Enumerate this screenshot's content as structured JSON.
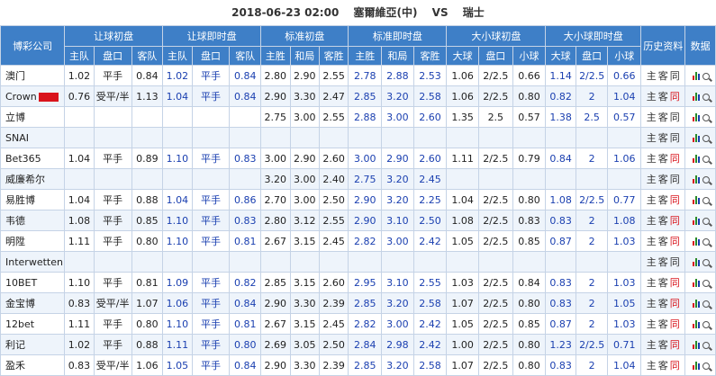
{
  "match": {
    "datetime": "2018-06-23 02:00",
    "home": "塞爾維亞(中)",
    "vs": "VS",
    "away": "瑞士"
  },
  "headers": {
    "company": "博彩公司",
    "groups": [
      "让球初盘",
      "让球即时盘",
      "标准初盘",
      "标准即时盘",
      "大小球初盘",
      "大小球即时盘",
      "历史资料",
      "数据"
    ],
    "sub": [
      "主队",
      "盘口",
      "客队",
      "主队",
      "盘口",
      "客队",
      "主胜",
      "和局",
      "客胜",
      "主胜",
      "和局",
      "客胜",
      "大球",
      "盘口",
      "小球",
      "大球",
      "盘口",
      "小球"
    ]
  },
  "links": {
    "home": "主",
    "away": "客",
    "same": "同"
  },
  "colors": {
    "header_bg": "#3e7fc7",
    "live_text": "#1a3fb0",
    "same_red": "#d9141c"
  },
  "rows": [
    {
      "company": "澳门",
      "vals": [
        "1.02",
        "平手",
        "0.84",
        "1.02",
        "平手",
        "0.84",
        "2.80",
        "2.90",
        "2.55",
        "2.78",
        "2.88",
        "2.53",
        "1.06",
        "2/2.5",
        "0.66",
        "1.14",
        "2/2.5",
        "0.66"
      ],
      "same_red": false
    },
    {
      "company": "Crown",
      "badge": true,
      "vals": [
        "0.76",
        "受平/半",
        "1.13",
        "1.04",
        "平手",
        "0.84",
        "2.90",
        "3.30",
        "2.47",
        "2.85",
        "3.20",
        "2.58",
        "1.06",
        "2/2.5",
        "0.80",
        "0.82",
        "2",
        "1.04"
      ],
      "same_red": true
    },
    {
      "company": "立博",
      "vals": [
        "",
        "",
        "",
        "",
        "",
        "",
        "2.75",
        "3.00",
        "2.55",
        "2.88",
        "3.00",
        "2.60",
        "1.35",
        "2.5",
        "0.57",
        "1.38",
        "2.5",
        "0.57"
      ],
      "same_red": false
    },
    {
      "company": "SNAI",
      "vals": [
        "",
        "",
        "",
        "",
        "",
        "",
        "",
        "",
        "",
        "",
        "",
        "",
        "",
        "",
        "",
        "",
        "",
        ""
      ],
      "same_red": false
    },
    {
      "company": "Bet365",
      "vals": [
        "1.04",
        "平手",
        "0.89",
        "1.10",
        "平手",
        "0.83",
        "3.00",
        "2.90",
        "2.60",
        "3.00",
        "2.90",
        "2.60",
        "1.11",
        "2/2.5",
        "0.79",
        "0.84",
        "2",
        "1.06"
      ],
      "same_red": true
    },
    {
      "company": "威廉希尔",
      "vals": [
        "",
        "",
        "",
        "",
        "",
        "",
        "3.20",
        "3.00",
        "2.40",
        "2.75",
        "3.20",
        "2.45",
        "",
        "",
        "",
        "",
        "",
        ""
      ],
      "same_red": false
    },
    {
      "company": "易胜博",
      "vals": [
        "1.04",
        "平手",
        "0.88",
        "1.04",
        "平手",
        "0.86",
        "2.70",
        "3.00",
        "2.50",
        "2.90",
        "3.20",
        "2.25",
        "1.04",
        "2/2.5",
        "0.80",
        "1.08",
        "2/2.5",
        "0.77"
      ],
      "same_red": true
    },
    {
      "company": "韦德",
      "vals": [
        "1.08",
        "平手",
        "0.85",
        "1.10",
        "平手",
        "0.83",
        "2.80",
        "3.12",
        "2.55",
        "2.90",
        "3.10",
        "2.50",
        "1.08",
        "2/2.5",
        "0.83",
        "0.83",
        "2",
        "1.08"
      ],
      "same_red": true
    },
    {
      "company": "明陞",
      "vals": [
        "1.11",
        "平手",
        "0.80",
        "1.10",
        "平手",
        "0.81",
        "2.67",
        "3.15",
        "2.45",
        "2.82",
        "3.00",
        "2.42",
        "1.05",
        "2/2.5",
        "0.85",
        "0.87",
        "2",
        "1.03"
      ],
      "same_red": true
    },
    {
      "company": "Interwetten",
      "vals": [
        "",
        "",
        "",
        "",
        "",
        "",
        "",
        "",
        "",
        "",
        "",
        "",
        "",
        "",
        "",
        "",
        "",
        ""
      ],
      "same_red": false
    },
    {
      "company": "10BET",
      "vals": [
        "1.10",
        "平手",
        "0.81",
        "1.09",
        "平手",
        "0.82",
        "2.85",
        "3.15",
        "2.60",
        "2.95",
        "3.10",
        "2.55",
        "1.03",
        "2/2.5",
        "0.84",
        "0.83",
        "2",
        "1.03"
      ],
      "same_red": true
    },
    {
      "company": "金宝博",
      "vals": [
        "0.83",
        "受平/半",
        "1.07",
        "1.06",
        "平手",
        "0.84",
        "2.90",
        "3.30",
        "2.39",
        "2.85",
        "3.20",
        "2.58",
        "1.07",
        "2/2.5",
        "0.80",
        "0.83",
        "2",
        "1.05"
      ],
      "same_red": true
    },
    {
      "company": "12bet",
      "vals": [
        "1.11",
        "平手",
        "0.80",
        "1.10",
        "平手",
        "0.81",
        "2.67",
        "3.15",
        "2.45",
        "2.82",
        "3.00",
        "2.42",
        "1.05",
        "2/2.5",
        "0.85",
        "0.87",
        "2",
        "1.03"
      ],
      "same_red": true
    },
    {
      "company": "利记",
      "vals": [
        "1.02",
        "平手",
        "0.88",
        "1.11",
        "平手",
        "0.80",
        "2.69",
        "3.05",
        "2.50",
        "2.84",
        "2.98",
        "2.42",
        "1.00",
        "2/2.5",
        "0.80",
        "1.23",
        "2/2.5",
        "0.71"
      ],
      "same_red": true
    },
    {
      "company": "盈禾",
      "vals": [
        "0.83",
        "受平/半",
        "1.06",
        "1.05",
        "平手",
        "0.84",
        "2.90",
        "3.30",
        "2.39",
        "2.85",
        "3.20",
        "2.58",
        "1.07",
        "2/2.5",
        "0.80",
        "0.83",
        "2",
        "1.04"
      ],
      "same_red": true
    }
  ]
}
